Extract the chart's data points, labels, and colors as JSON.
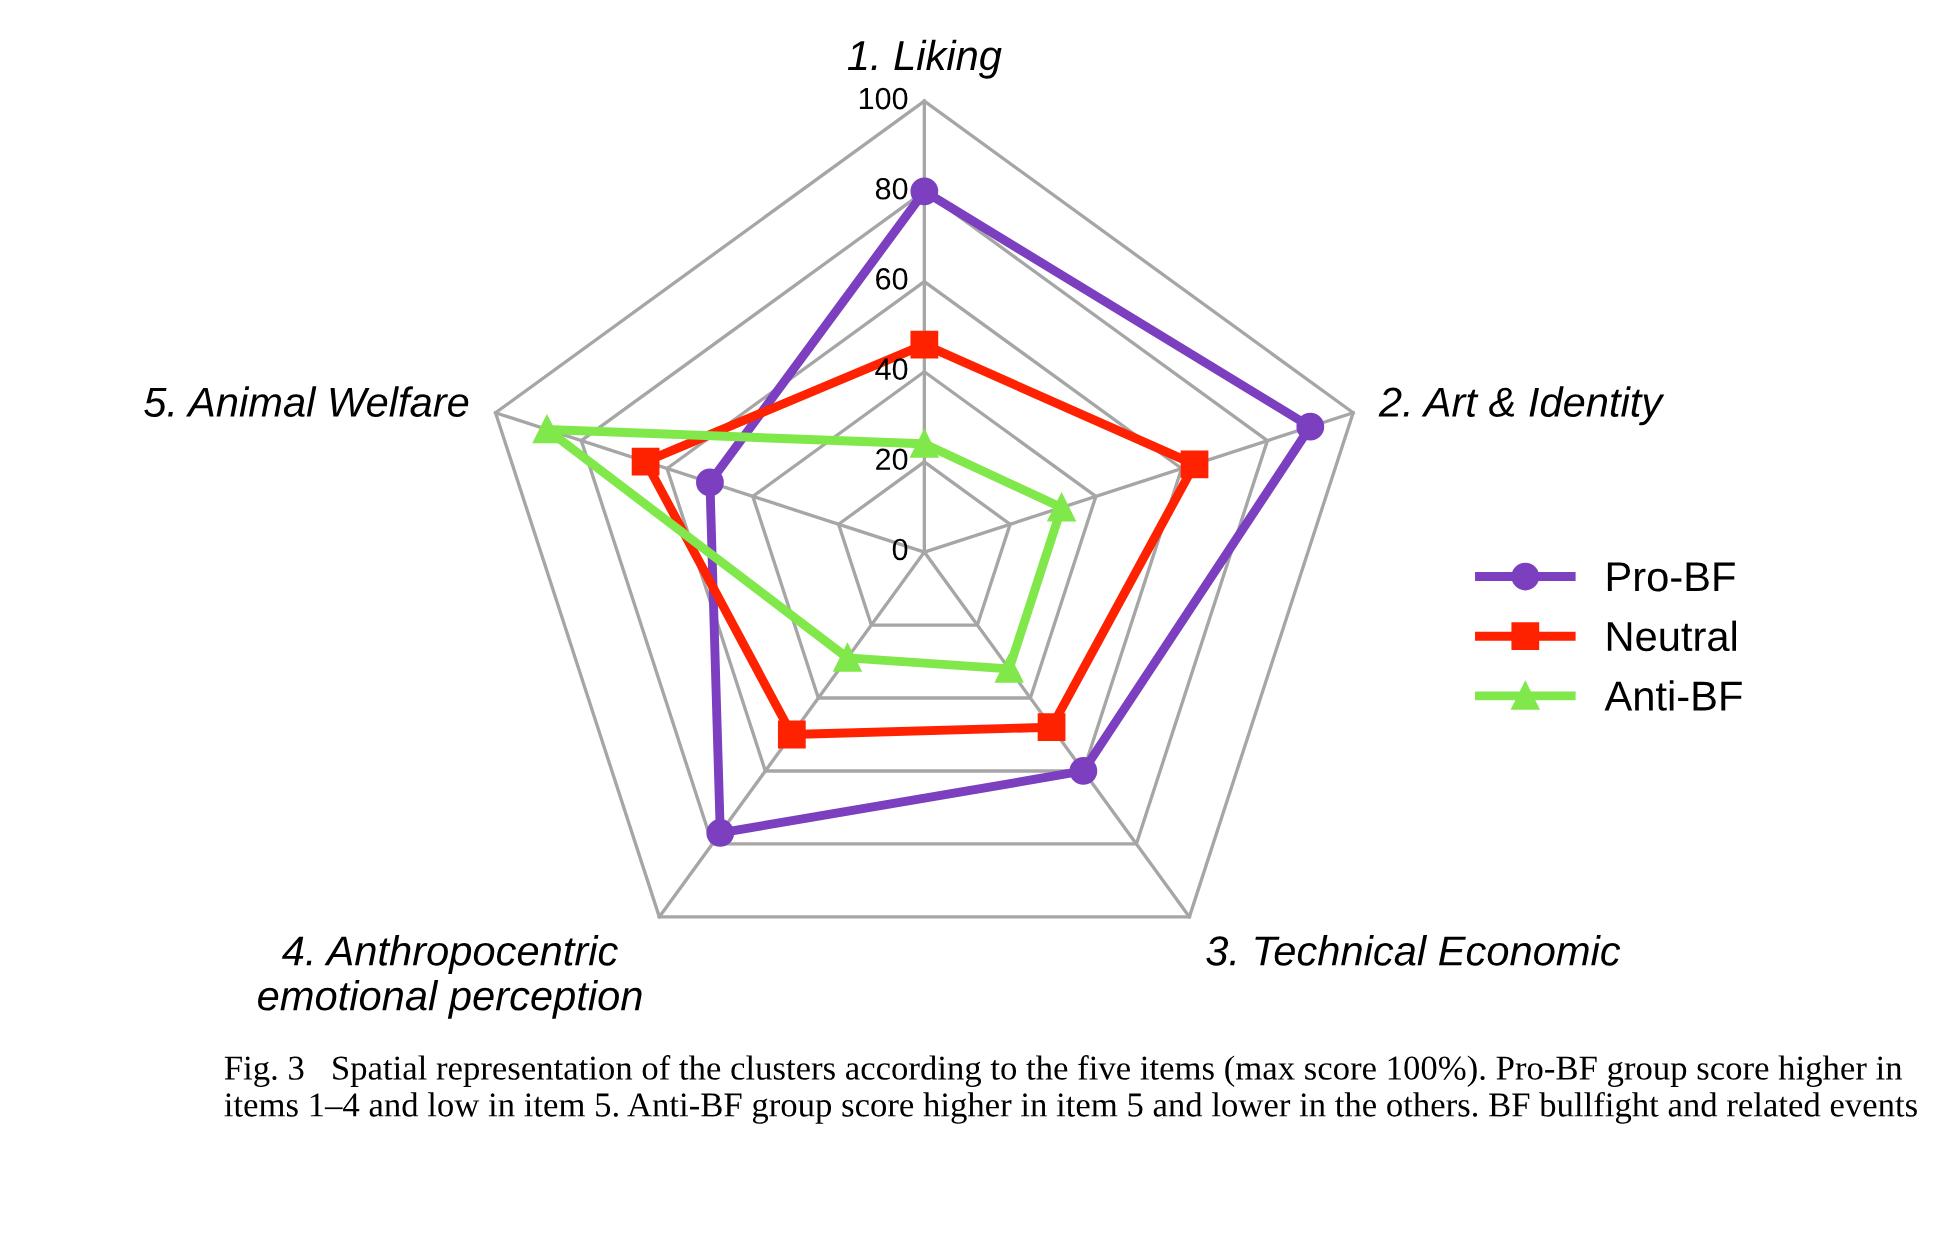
{
  "chart_data": {
    "type": "radar",
    "categories": [
      "1. Liking",
      "2. Art & Identity",
      "3. Technical Economic",
      "4. Anthropocentric\nemotional perception",
      "5. Animal Welfare"
    ],
    "ylim": [
      0,
      100
    ],
    "yticks": [
      0,
      20,
      40,
      60,
      80,
      100
    ],
    "grid": true,
    "legend": "right",
    "line_style": "solid",
    "series": [
      {
        "name": "Pro-BF",
        "color": "#7b3fbf",
        "marker": "circle",
        "values": [
          80,
          90,
          60,
          77,
          50
        ]
      },
      {
        "name": "Neutral",
        "color": "#ff2200",
        "marker": "square",
        "values": [
          46,
          63,
          48,
          50,
          65
        ]
      },
      {
        "name": "Anti-BF",
        "color": "#80e84a",
        "marker": "triangle",
        "values": [
          24,
          32,
          32,
          29,
          88
        ]
      }
    ],
    "annotations": [
      "Fig. 3   Spatial representation of the clusters according to the five items (max score 100%). Pro-BF group score higher in items 1–4 and low in item 5. Anti-BF group score higher in item 5 and lower in the others. BF bullfight and related events"
    ]
  }
}
